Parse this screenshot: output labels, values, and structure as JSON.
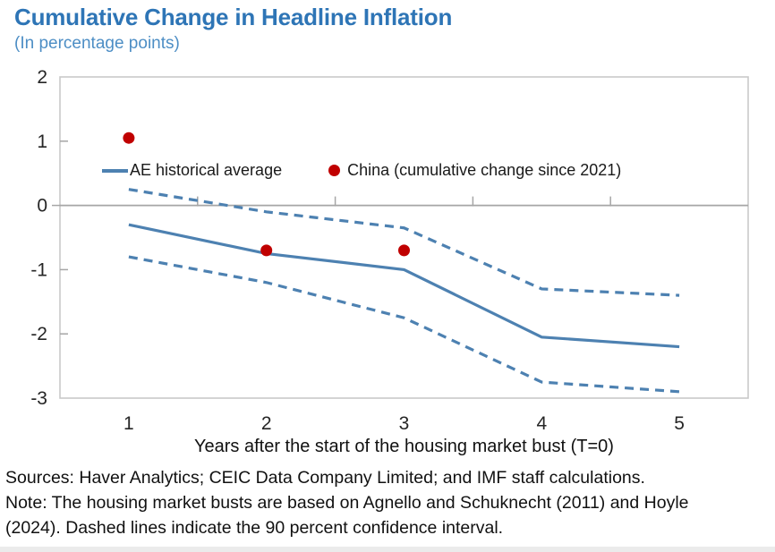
{
  "title": "Cumulative Change in Headline Inflation",
  "subtitle": "(In percentage points)",
  "colors": {
    "title_blue": "#2E75B6",
    "subtitle_blue": "#4D8EC5",
    "line_blue": "#4D81B1",
    "china_red": "#C00000",
    "axis_gray": "#A6A6A6",
    "frame_gray": "#C9C9C9",
    "text_dark": "#262626"
  },
  "chart_data": {
    "type": "line",
    "x": [
      1,
      2,
      3,
      4,
      5
    ],
    "xlabel": "Years after the start of the housing market bust (T=0)",
    "ylim": [
      -3,
      2
    ],
    "yticks": [
      2,
      1,
      0,
      -1,
      -2,
      -3
    ],
    "xticks": [
      1,
      2,
      3,
      4,
      5
    ],
    "grid": false,
    "legend_position": "top-inside",
    "series": [
      {
        "name": "AE historical average",
        "type": "line",
        "style": "solid",
        "color": "#4D81B1",
        "values": [
          -0.3,
          -0.75,
          -1.0,
          -2.05,
          -2.2
        ],
        "in_legend": true
      },
      {
        "name": "90 percent confidence interval (upper)",
        "type": "line",
        "style": "dashed",
        "color": "#4D81B1",
        "values": [
          0.25,
          -0.1,
          -0.35,
          -1.3,
          -1.4
        ],
        "in_legend": false
      },
      {
        "name": "90 percent confidence interval (lower)",
        "type": "line",
        "style": "dashed",
        "color": "#4D81B1",
        "values": [
          -0.8,
          -1.2,
          -1.75,
          -2.75,
          -2.9
        ],
        "in_legend": false
      },
      {
        "name": "China (cumulative change since 2021)",
        "type": "scatter",
        "color": "#C00000",
        "x": [
          1,
          2,
          3
        ],
        "values": [
          1.05,
          -0.7,
          -0.7
        ],
        "in_legend": true
      }
    ]
  },
  "footer": {
    "sources": "Sources: Haver Analytics; CEIC Data Company Limited; and IMF staff calculations.",
    "note": "Note: The housing market busts are based on Agnello and Schuknecht (2011) and Hoyle (2024). Dashed lines indicate the 90 percent confidence interval."
  }
}
